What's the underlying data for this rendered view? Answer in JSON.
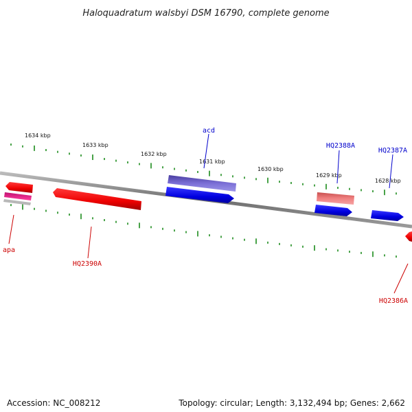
{
  "title": "Haloquadratum walsbyi DSM 16790, complete genome",
  "accession": "Accession: NC_008212",
  "summary": "Topology: circular; Length: 3,132,494 bp; Genes: 2,662",
  "colors": {
    "backbone": "#808080",
    "tick": "#1a8a1a",
    "forward_label": "#0000cc",
    "reverse_label": "#cc0000"
  },
  "ticks": [
    {
      "label": "1634 kbp"
    },
    {
      "label": "1633 kbp"
    },
    {
      "label": "1632 kbp"
    },
    {
      "label": "1631 kbp"
    },
    {
      "label": "1630 kbp"
    },
    {
      "label": "1629 kbp"
    },
    {
      "label": "1628 kbp"
    }
  ],
  "genes": [
    {
      "name": "acd",
      "strand": "forward",
      "color": "#0000dd",
      "feature_color": "#6a5acd"
    },
    {
      "name": "HQ2388A",
      "strand": "forward",
      "color": "#0000dd",
      "feature_color": "#e57373"
    },
    {
      "name": "HQ2387A",
      "strand": "forward",
      "color": "#0000dd",
      "feature_color": null
    },
    {
      "name": "apa",
      "strand": "reverse",
      "color": "#ee0000",
      "feature_color": "#e0338a"
    },
    {
      "name": "HQ2390A",
      "strand": "reverse",
      "color": "#ee0000",
      "feature_color": null
    },
    {
      "name": "HQ2386A",
      "strand": "reverse",
      "color": "#ee0000",
      "feature_color": null
    }
  ]
}
